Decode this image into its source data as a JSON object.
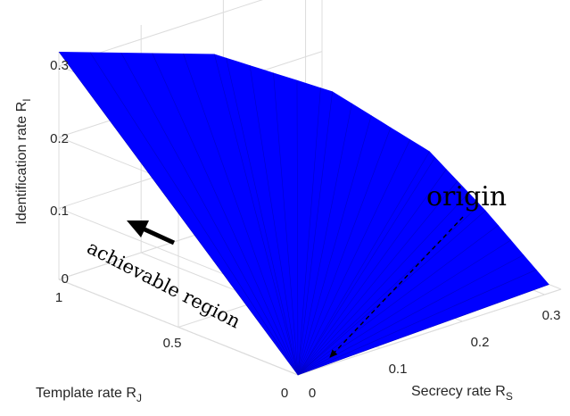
{
  "chart_data": {
    "type": "surface3d",
    "axes": {
      "x": {
        "label": "Secrecy rate R",
        "subscript": "S",
        "ticks": [
          "0",
          "0.1",
          "0.2",
          "0.3"
        ],
        "range": [
          0,
          0.32
        ]
      },
      "y": {
        "label": "Template rate R",
        "subscript": "J",
        "ticks": [
          "0",
          "0.5",
          "1"
        ],
        "range": [
          0,
          1
        ]
      },
      "z": {
        "label": "Identification rate R",
        "subscript": "I",
        "ticks": [
          "0",
          "0.1",
          "0.2",
          "0.3"
        ],
        "range": [
          0,
          0.32
        ]
      }
    },
    "grid": true,
    "surface": {
      "color": "#0000ff",
      "apex": {
        "rs": 0,
        "rj": 0,
        "ri": 0
      },
      "far_end_curve": [
        {
          "rs": 0.0,
          "rj": 1.0,
          "ri": 0.32
        },
        {
          "rs": 0.16,
          "rj": 0.9,
          "ri": 0.27
        },
        {
          "rs": 0.26,
          "rj": 0.75,
          "ri": 0.2
        },
        {
          "rs": 0.32,
          "rj": 0.55,
          "ri": 0.12
        },
        {
          "rs": 0.33,
          "rj": 0.35,
          "ri": 0.06
        },
        {
          "rs": 0.32,
          "rj": 0.05,
          "ri": 0.0
        }
      ]
    },
    "annotations": [
      {
        "text": "origin",
        "points_to": "apex"
      },
      {
        "text": "achievable region",
        "arrow": "toward upper-left"
      }
    ]
  }
}
